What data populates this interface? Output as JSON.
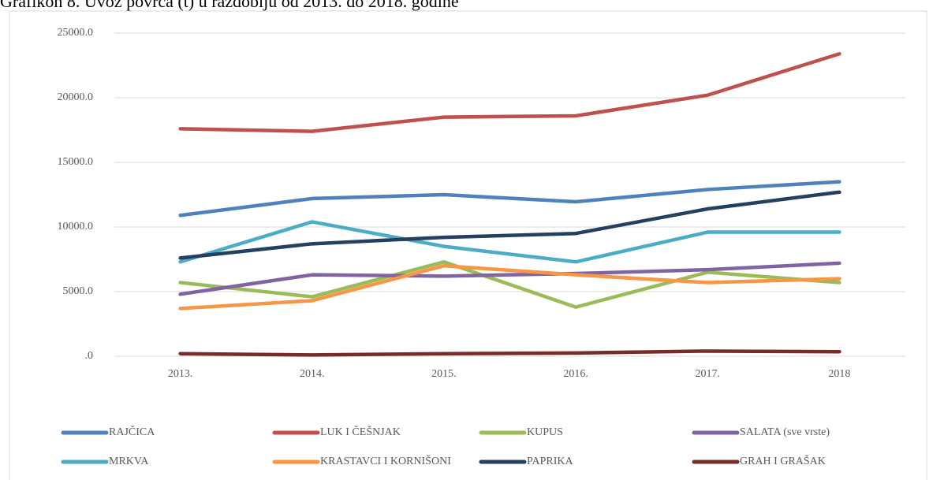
{
  "chart_data": {
    "type": "line",
    "title": "Grafikon 8. Uvoz povrća (t) u razdoblju od 2013. do 2018. godine",
    "categories": [
      "2013.",
      "2014.",
      "2015.",
      "2016.",
      "2017.",
      "2018"
    ],
    "ylim": [
      0,
      25000
    ],
    "yticks": [
      {
        "value": 0,
        "label": ".0"
      },
      {
        "value": 5000,
        "label": "5000.0"
      },
      {
        "value": 10000,
        "label": "10000.0"
      },
      {
        "value": 15000,
        "label": "15000.0"
      },
      {
        "value": 20000,
        "label": "20000.0"
      },
      {
        "value": 25000,
        "label": "25000.0"
      }
    ],
    "grid": true,
    "legend": "bottom",
    "series": [
      {
        "name": "RAJČICA",
        "color": "#4f81bd",
        "values": [
          10900,
          12200,
          12500,
          11950,
          12900,
          13500
        ]
      },
      {
        "name": "LUK I ČEŠNJAK",
        "color": "#c0504d",
        "values": [
          17600,
          17400,
          18500,
          18600,
          20200,
          23400
        ]
      },
      {
        "name": "KUPUS",
        "color": "#9bbb59",
        "values": [
          5700,
          4600,
          7300,
          3800,
          6500,
          5700
        ]
      },
      {
        "name": "SALATA (sve vrste)",
        "color": "#8064a2",
        "values": [
          4800,
          6300,
          6200,
          6400,
          6700,
          7200
        ]
      },
      {
        "name": "MRKVA",
        "color": "#4bacc6",
        "values": [
          7300,
          10400,
          8500,
          7300,
          9600,
          9600
        ]
      },
      {
        "name": "KRASTAVCI I KORNIŠONI",
        "color": "#f79646",
        "values": [
          3700,
          4300,
          7000,
          6300,
          5700,
          6000
        ]
      },
      {
        "name": "PAPRIKA",
        "color": "#243f60",
        "values": [
          7600,
          8700,
          9200,
          9500,
          11400,
          12700
        ]
      },
      {
        "name": "GRAH I GRAŠAK",
        "color": "#772c2a",
        "values": [
          200,
          100,
          200,
          250,
          400,
          350
        ]
      }
    ]
  }
}
